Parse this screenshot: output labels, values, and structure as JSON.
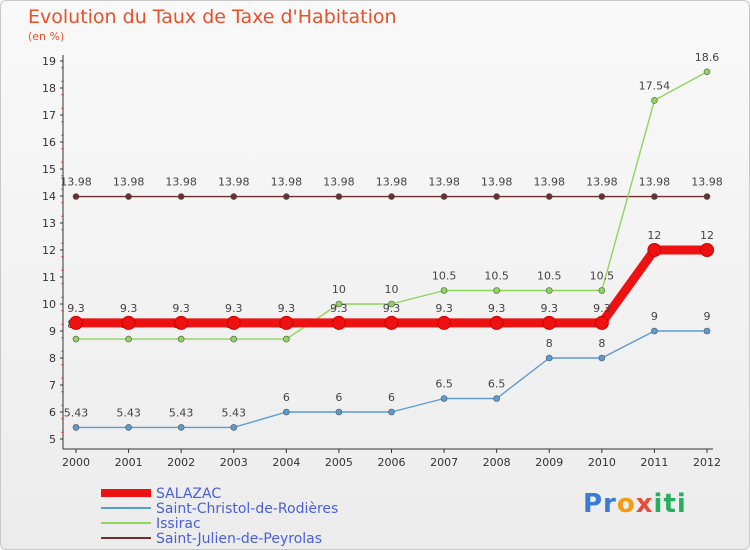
{
  "title": "Evolution du Taux de Taxe d'Habitation",
  "subtitle": "(en %)",
  "logo": {
    "text": "Proxiti"
  },
  "chart_data": {
    "type": "line",
    "x": [
      "2000",
      "2001",
      "2002",
      "2003",
      "2004",
      "2005",
      "2006",
      "2007",
      "2008",
      "2009",
      "2010",
      "2011",
      "2012"
    ],
    "ylim": [
      5,
      19
    ],
    "yticks": [
      5,
      6,
      7,
      8,
      9,
      10,
      11,
      12,
      13,
      14,
      15,
      16,
      17,
      18,
      19
    ],
    "grid": false,
    "legend_position": "bottom-left",
    "series": [
      {
        "name": "Saint-Julien-de-Peyrolas",
        "color": "#6b2f2f",
        "values": [
          13.98,
          13.98,
          13.98,
          13.98,
          13.98,
          13.98,
          13.98,
          13.98,
          13.98,
          13.98,
          13.98,
          13.98,
          13.98
        ],
        "labels": [
          "13.98",
          "13.98",
          "13.98",
          "13.98",
          "13.98",
          "13.98",
          "13.98",
          "13.98",
          "13.98",
          "13.98",
          "13.98",
          "13.98",
          "13.98"
        ]
      },
      {
        "name": "Issirac",
        "color": "#8fd45b",
        "values": [
          8.7,
          8.7,
          8.7,
          8.7,
          8.7,
          10,
          10,
          10.5,
          10.5,
          10.5,
          10.5,
          17.54,
          18.6
        ],
        "labels": [
          "8.7",
          "8.7",
          "8.7",
          "8.7",
          "8.7",
          "10",
          "10",
          "10.5",
          "10.5",
          "10.5",
          "10.5",
          "17.54",
          "18.6"
        ]
      },
      {
        "name": "Saint-Christol-de-Rodières",
        "color": "#5b9bd5",
        "values": [
          5.43,
          5.43,
          5.43,
          5.43,
          6,
          6,
          6,
          6.5,
          6.5,
          8,
          8,
          9,
          9
        ],
        "labels": [
          "5.43",
          "5.43",
          "5.43",
          "5.43",
          "6",
          "6",
          "6",
          "6.5",
          "6.5",
          "8",
          "8",
          "9",
          "9"
        ]
      },
      {
        "name": "SALAZAC",
        "color": "#ee1111",
        "values": [
          9.3,
          9.3,
          9.3,
          9.3,
          9.3,
          9.3,
          9.3,
          9.3,
          9.3,
          9.3,
          9.3,
          12,
          12
        ],
        "labels": [
          "9.3",
          "9.3",
          "9.3",
          "9.3",
          "9.3",
          "9.3",
          "9.3",
          "9.3",
          "9.3",
          "9.3",
          "9.3",
          "12",
          "12"
        ]
      }
    ],
    "legend": [
      "SALAZAC",
      "Saint-Christol-de-Rodières",
      "Issirac",
      "Saint-Julien-de-Peyrolas"
    ]
  }
}
